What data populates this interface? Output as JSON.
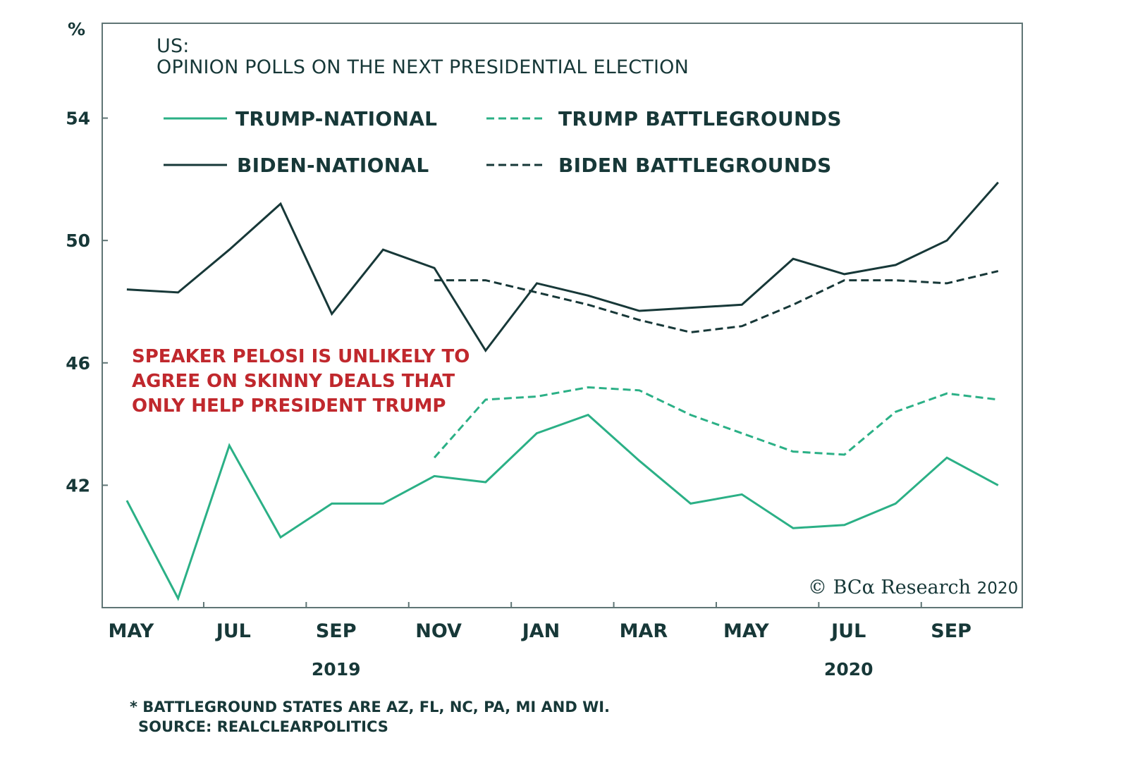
{
  "chart_data": {
    "type": "line",
    "title": "US:",
    "subtitle": "OPINION POLLS ON THE NEXT PRESIDENTIAL ELECTION",
    "ylabel": "%",
    "xlabel": "",
    "ylim": [
      38,
      57.1
    ],
    "xlim": [
      -0.48,
      17.47
    ],
    "yticks": [
      42,
      46,
      50,
      54
    ],
    "ytick_labels": [
      "42",
      "46",
      "50",
      "54"
    ],
    "xtick_labels": [
      {
        "label": "MAY",
        "index": 0
      },
      {
        "label": "JUL",
        "index": 2
      },
      {
        "label": "SEP",
        "index": 4
      },
      {
        "label": "NOV",
        "index": 6
      },
      {
        "label": "JAN",
        "index": 8
      },
      {
        "label": "MAR",
        "index": 10
      },
      {
        "label": "MAY",
        "index": 12
      },
      {
        "label": "JUL",
        "index": 14
      },
      {
        "label": "SEP",
        "index": 16
      }
    ],
    "tick_marks_at": [
      1.5,
      3.5,
      5.5,
      7.5,
      9.5,
      11.5,
      13.5,
      15.5
    ],
    "year_labels": [
      {
        "label": "2019",
        "index": 4
      },
      {
        "label": "2020",
        "index": 14
      }
    ],
    "x": [
      "May-19",
      "Jun-19",
      "Jul-19",
      "Aug-19",
      "Sep-19",
      "Oct-19",
      "Nov-19",
      "Dec-19",
      "Jan-20",
      "Feb-20",
      "Mar-20",
      "Apr-20",
      "May-20",
      "Jun-20",
      "Jul-20",
      "Aug-20",
      "Sep-20",
      "Oct-20"
    ],
    "series": [
      {
        "name": "TRUMP-NATIONAL",
        "color": "#2bb086",
        "style": "solid",
        "start_index": 0,
        "values": [
          41.5,
          38.3,
          43.3,
          40.3,
          41.4,
          41.4,
          42.3,
          42.1,
          43.7,
          44.3,
          42.8,
          41.4,
          41.7,
          40.6,
          40.7,
          41.4,
          42.9,
          42.0
        ]
      },
      {
        "name": "TRUMP BATTLEGROUNDS",
        "color": "#2bb086",
        "style": "dashed",
        "start_index": 6,
        "values": [
          42.9,
          44.8,
          44.9,
          45.2,
          45.1,
          44.3,
          43.7,
          43.1,
          43.0,
          44.4,
          45.0,
          44.8
        ]
      },
      {
        "name": "BIDEN-NATIONAL",
        "color": "#173838",
        "style": "solid",
        "start_index": 0,
        "values": [
          48.4,
          48.3,
          49.7,
          51.2,
          47.6,
          49.7,
          49.1,
          46.4,
          48.6,
          48.2,
          47.7,
          47.8,
          47.9,
          49.4,
          48.9,
          49.2,
          50.0,
          51.9
        ]
      },
      {
        "name": "BIDEN BATTLEGROUNDS",
        "color": "#173838",
        "style": "dashed",
        "start_index": 6,
        "values": [
          48.7,
          48.7,
          48.3,
          47.9,
          47.4,
          47.0,
          47.2,
          47.9,
          48.7,
          48.7,
          48.6,
          49.0
        ]
      }
    ],
    "legend": {
      "placement": "top-left",
      "entries": [
        "TRUMP-NATIONAL",
        "TRUMP BATTLEGROUNDS",
        "BIDEN-NATIONAL",
        "BIDEN BATTLEGROUNDS"
      ]
    },
    "annotation": {
      "lines": [
        "SPEAKER PELOSI IS UNLIKELY TO",
        "AGREE ON SKINNY DEALS THAT",
        "ONLY HELP PRESIDENT TRUMP"
      ],
      "color": "#c0282d"
    },
    "grid": false
  },
  "credit": {
    "symbol": "©",
    "brand": "BCα Research",
    "year": "2020"
  },
  "footnote": {
    "line1": "* BATTLEGROUND  STATES  ARE AZ, FL, NC, PA, MI AND WI.",
    "line2": "SOURCE:  REALCLEARPOLITICS"
  },
  "colors": {
    "dark": "#173838",
    "green": "#2bb086",
    "red": "#c0282d",
    "frame": "#5f7575"
  }
}
